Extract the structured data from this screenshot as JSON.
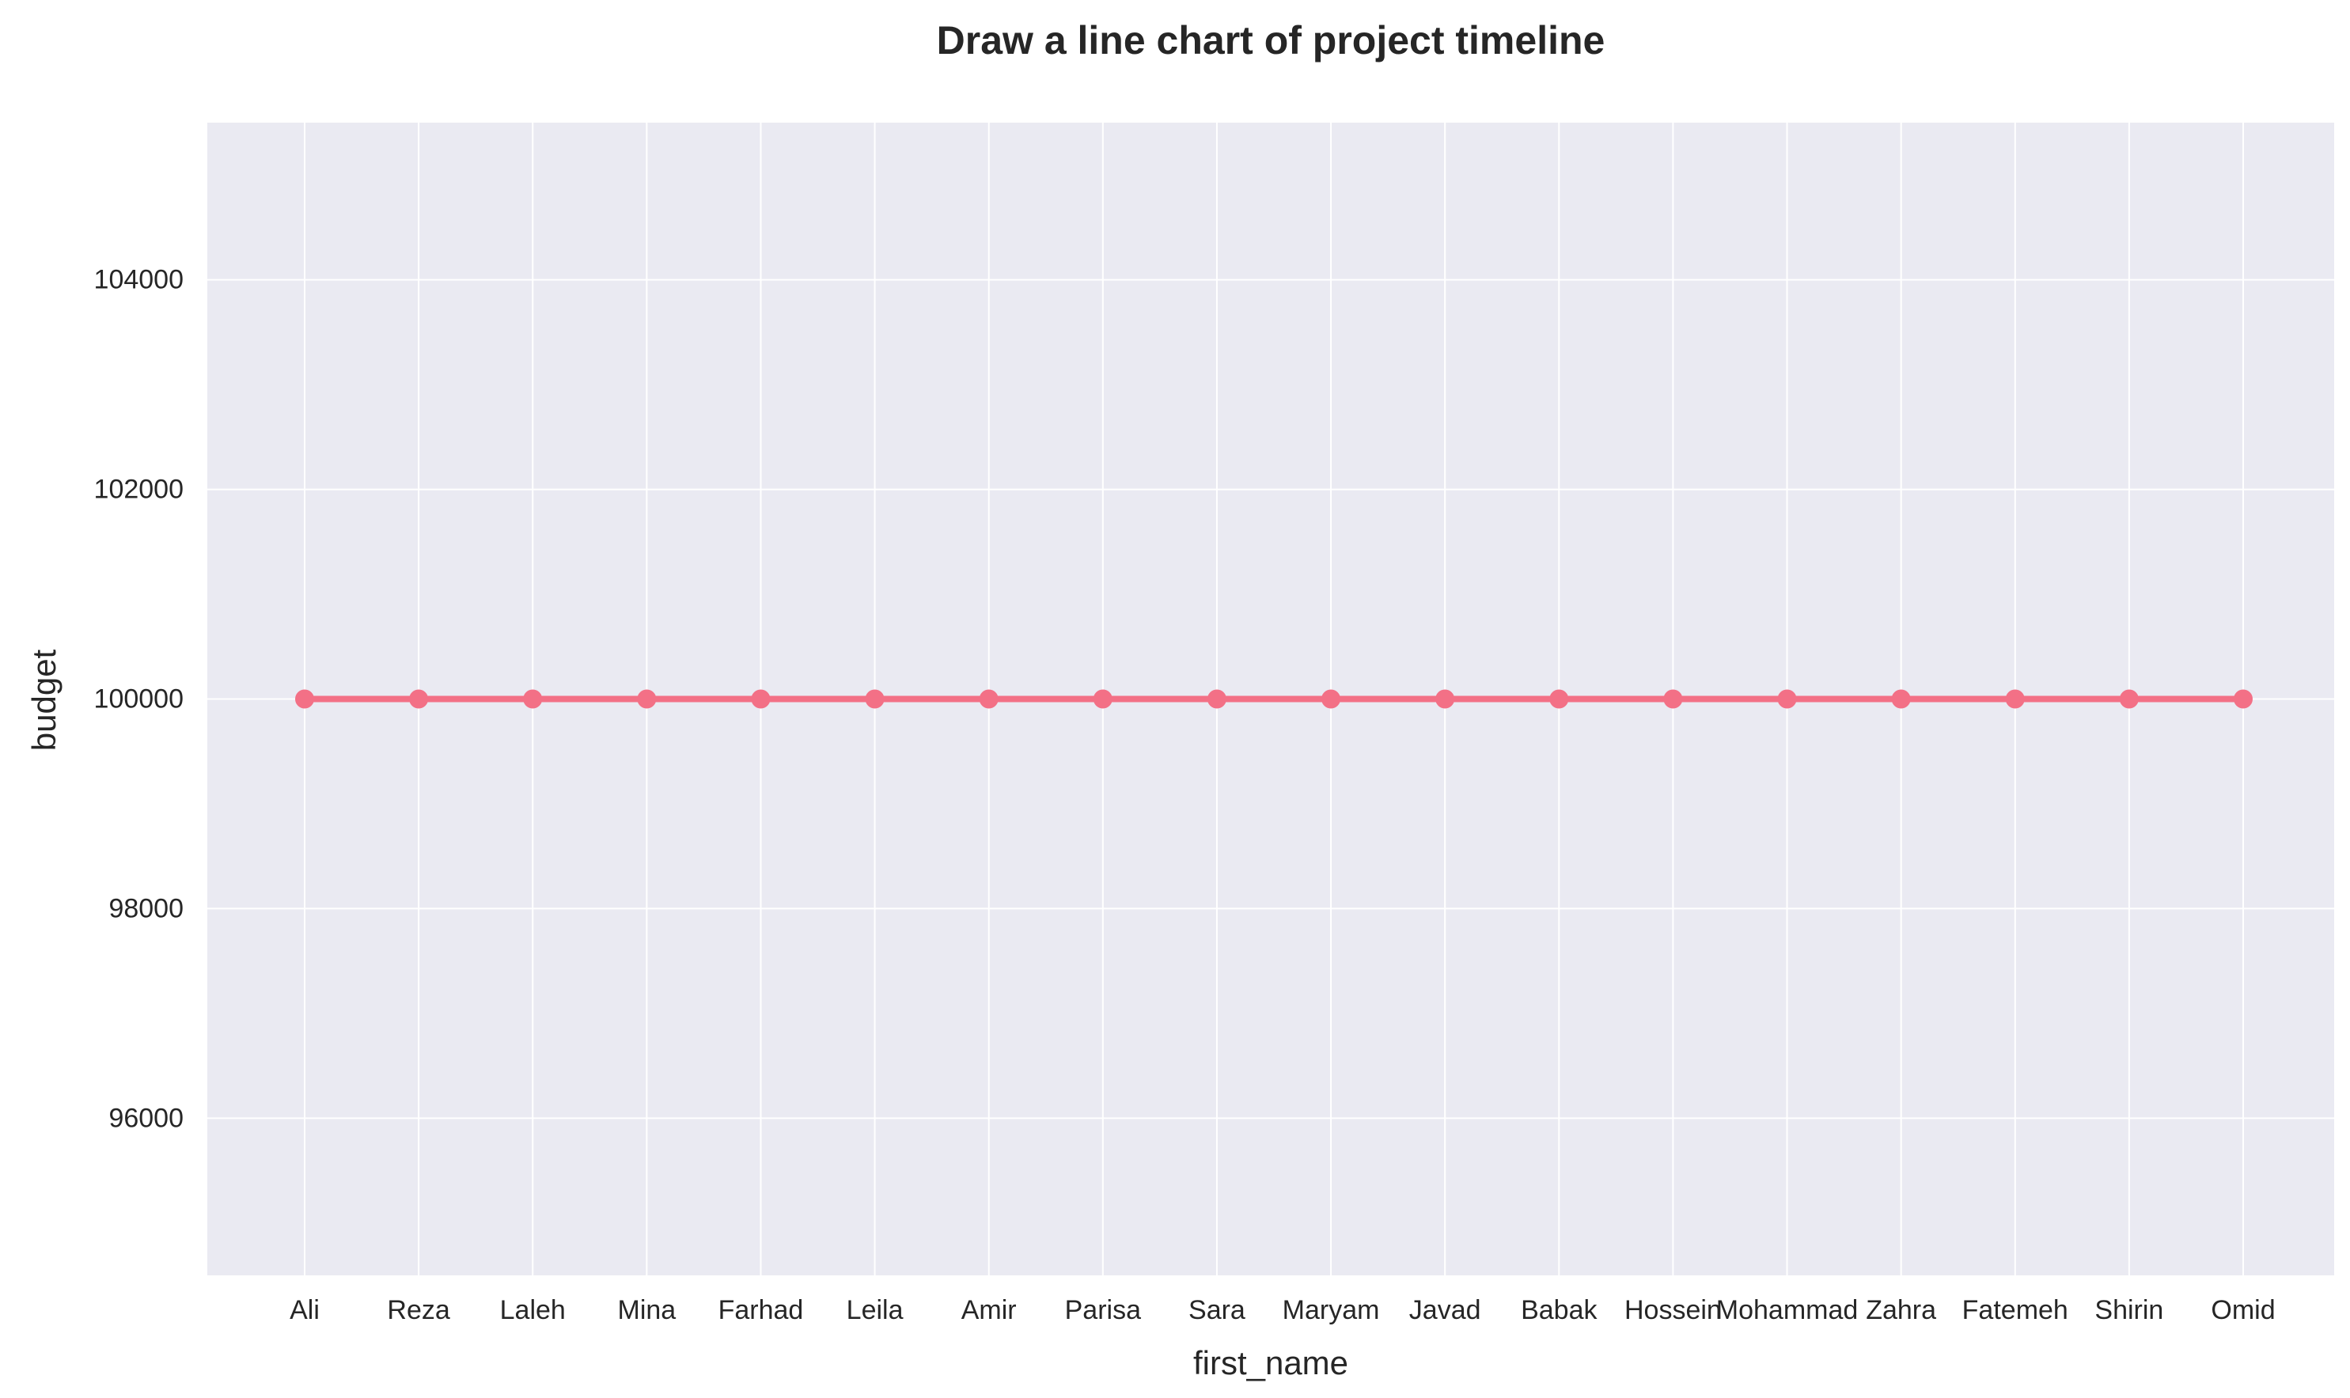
{
  "chart_data": {
    "type": "line",
    "title": "Draw a line chart of project timeline",
    "xlabel": "first_name",
    "ylabel": "budget",
    "categories": [
      "Ali",
      "Reza",
      "Laleh",
      "Mina",
      "Farhad",
      "Leila",
      "Amir",
      "Parisa",
      "Sara",
      "Maryam",
      "Javad",
      "Babak",
      "Hossein",
      "Mohammad",
      "Zahra",
      "Fatemeh",
      "Shirin",
      "Omid"
    ],
    "series": [
      {
        "values": [
          100000,
          100000,
          100000,
          100000,
          100000,
          100000,
          100000,
          100000,
          100000,
          100000,
          100000,
          100000,
          100000,
          100000,
          100000,
          100000,
          100000,
          100000
        ],
        "color": "#f37086"
      }
    ],
    "ylim": [
      94500,
      105500
    ],
    "yticks": [
      96000,
      98000,
      100000,
      102000,
      104000
    ],
    "grid": true,
    "legend": "none",
    "plot_background": "#eaeaf2",
    "grid_color": "#ffffff"
  }
}
